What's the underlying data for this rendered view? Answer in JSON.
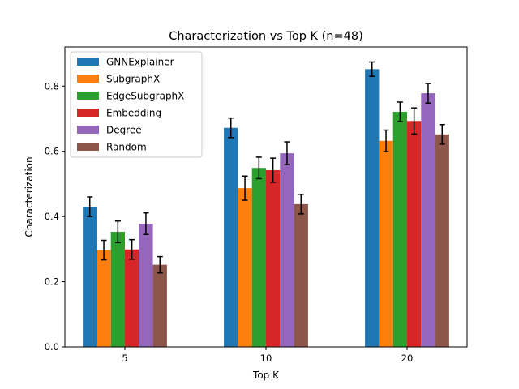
{
  "chart_data": {
    "type": "bar",
    "title": "Characterization vs Top K (n=48)",
    "xlabel": "Top K",
    "ylabel": "Characterization",
    "categories": [
      "5",
      "10",
      "20"
    ],
    "ylim": [
      0,
      0.92
    ],
    "yticks": [
      "0.0",
      "0.2",
      "0.4",
      "0.6",
      "0.8"
    ],
    "grid": false,
    "legend_position": "top-left",
    "error_bars": true,
    "series": [
      {
        "name": "GNNExplainer",
        "color": "#1f77b4",
        "values": [
          0.43,
          0.672,
          0.852
        ],
        "errors": [
          0.03,
          0.03,
          0.022
        ]
      },
      {
        "name": "SubgraphX",
        "color": "#ff7f0e",
        "values": [
          0.297,
          0.487,
          0.632
        ],
        "errors": [
          0.03,
          0.037,
          0.033
        ]
      },
      {
        "name": "EdgeSubgraphX",
        "color": "#2ca02c",
        "values": [
          0.353,
          0.549,
          0.721
        ],
        "errors": [
          0.033,
          0.033,
          0.03
        ]
      },
      {
        "name": "Embedding",
        "color": "#d62728",
        "values": [
          0.299,
          0.542,
          0.693
        ],
        "errors": [
          0.03,
          0.037,
          0.04
        ]
      },
      {
        "name": "Degree",
        "color": "#9467bd",
        "values": [
          0.378,
          0.594,
          0.778
        ],
        "errors": [
          0.033,
          0.035,
          0.03
        ]
      },
      {
        "name": "Random",
        "color": "#8c564b",
        "values": [
          0.252,
          0.438,
          0.652
        ],
        "errors": [
          0.025,
          0.03,
          0.03
        ]
      }
    ]
  }
}
